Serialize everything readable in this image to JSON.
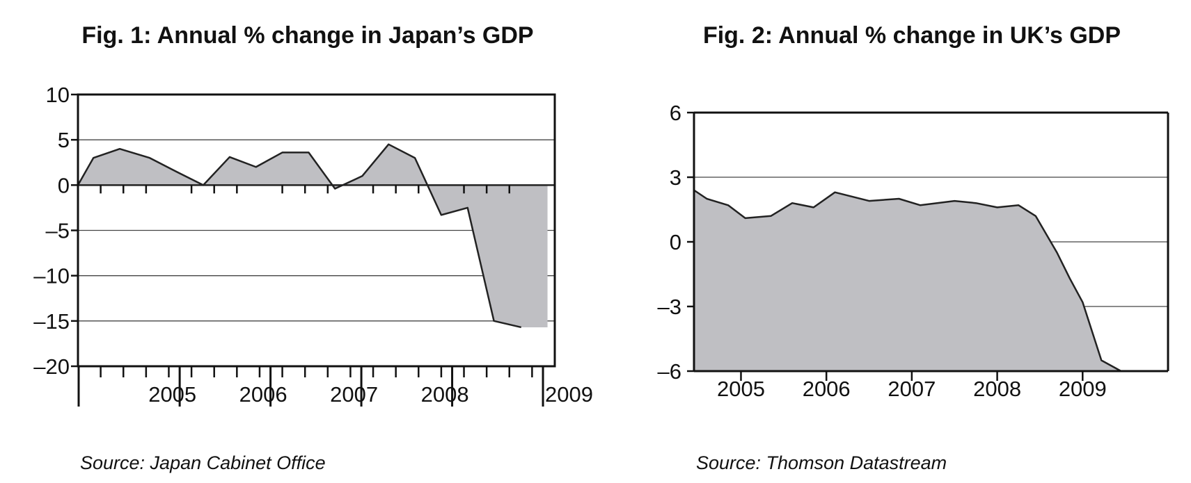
{
  "chart_data": [
    {
      "type": "area",
      "title": "Fig. 1: Annual % change in Japan’s GDP",
      "source": "Source: Japan Cabinet Office",
      "xlabel": "",
      "ylabel": "",
      "ylim": [
        -20,
        10
      ],
      "yticks": [
        10,
        5,
        0,
        -5,
        -10,
        -15,
        -20
      ],
      "yticklabels": [
        "10",
        "5",
        "0",
        "–5",
        "–10",
        "–15",
        "–20"
      ],
      "xlim": [
        2004.0,
        2009.25
      ],
      "year_labels": [
        "2005",
        "2006",
        "2007",
        "2008",
        "2009"
      ],
      "grid": true,
      "series": [
        {
          "x": [
            2004.0,
            2004.17,
            2004.46,
            2004.79,
            2005.08,
            2005.38,
            2005.67,
            2005.96,
            2006.25,
            2006.54,
            2006.83,
            2007.13,
            2007.42,
            2007.71,
            2008.0,
            2008.29,
            2008.58,
            2008.88,
            2009.17
          ],
          "y": [
            0.0,
            3.0,
            4.0,
            3.0,
            1.5,
            0.0,
            3.1,
            2.0,
            3.6,
            3.6,
            -0.4,
            1.0,
            4.5,
            3.0,
            -3.3,
            -2.5,
            -15.0,
            -15.7,
            -15.7
          ]
        }
      ]
    },
    {
      "type": "area",
      "title": "Fig. 2: Annual % change in UK’s GDP",
      "source": "Source: Thomson Datastream",
      "xlabel": "",
      "ylabel": "",
      "ylim": [
        -6,
        6
      ],
      "yticks": [
        6,
        3,
        0,
        -3,
        -6
      ],
      "yticklabels": [
        "6",
        "3",
        "0",
        "–3",
        "–6"
      ],
      "xlim": [
        2004.45,
        2010.0
      ],
      "year_labels": [
        "2005",
        "2006",
        "2007",
        "2008",
        "2009"
      ],
      "grid": true,
      "series": [
        {
          "x": [
            2004.45,
            2004.6,
            2004.85,
            2005.05,
            2005.35,
            2005.6,
            2005.85,
            2006.1,
            2006.5,
            2006.85,
            2007.1,
            2007.5,
            2007.75,
            2008.0,
            2008.25,
            2008.45,
            2008.7,
            2008.85,
            2009.0,
            2009.22,
            2009.45
          ],
          "y": [
            2.4,
            2.0,
            1.7,
            1.1,
            1.2,
            1.8,
            1.6,
            2.3,
            1.9,
            2.0,
            1.7,
            1.9,
            1.8,
            1.6,
            1.7,
            1.2,
            -0.5,
            -1.7,
            -2.8,
            -5.5,
            -6.0
          ]
        }
      ]
    }
  ]
}
